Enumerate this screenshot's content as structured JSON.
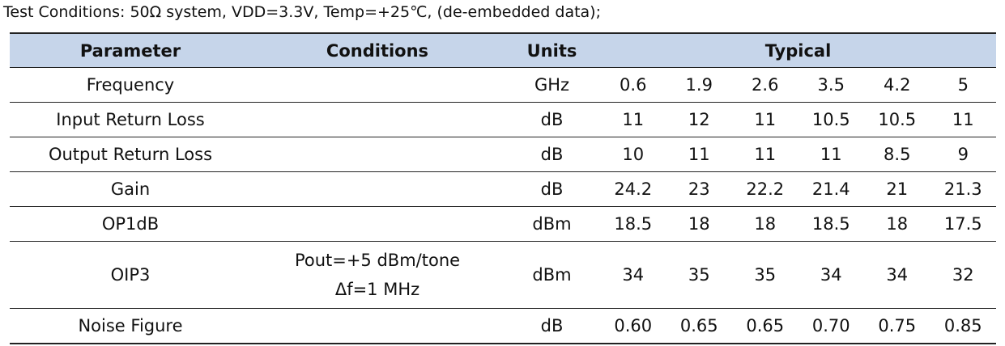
{
  "note": "Test Conditions: 50Ω system, VDD=3.3V, Temp=+25℃, (de-embedded data);",
  "table": {
    "header": {
      "parameter": "Parameter",
      "conditions": "Conditions",
      "units": "Units",
      "typical": "Typical"
    },
    "rows": [
      {
        "parameter": "Frequency",
        "units": "GHz",
        "typical": [
          "0.6",
          "1.9",
          "2.6",
          "3.5",
          "4.2",
          "5"
        ]
      },
      {
        "parameter": "Input Return Loss",
        "units": "dB",
        "typical": [
          "11",
          "12",
          "11",
          "10.5",
          "10.5",
          "11"
        ]
      },
      {
        "parameter": "Output Return Loss",
        "units": "dB",
        "typical": [
          "10",
          "11",
          "11",
          "11",
          "8.5",
          "9"
        ]
      },
      {
        "parameter": "Gain",
        "units": "dB",
        "typical": [
          "24.2",
          "23",
          "22.2",
          "21.4",
          "21",
          "21.3"
        ]
      },
      {
        "parameter": "OP1dB",
        "units": "dBm",
        "typical": [
          "18.5",
          "18",
          "18",
          "18.5",
          "18",
          "17.5"
        ]
      },
      {
        "parameter": "OIP3",
        "conditions": [
          "Pout=+5 dBm/tone",
          "Δf=1 MHz"
        ],
        "units": "dBm",
        "typical": [
          "34",
          "35",
          "35",
          "34",
          "34",
          "32"
        ]
      },
      {
        "parameter": "Noise Figure",
        "units": "dB",
        "typical": [
          "0.60",
          "0.65",
          "0.65",
          "0.70",
          "0.75",
          "0.85"
        ]
      }
    ]
  }
}
